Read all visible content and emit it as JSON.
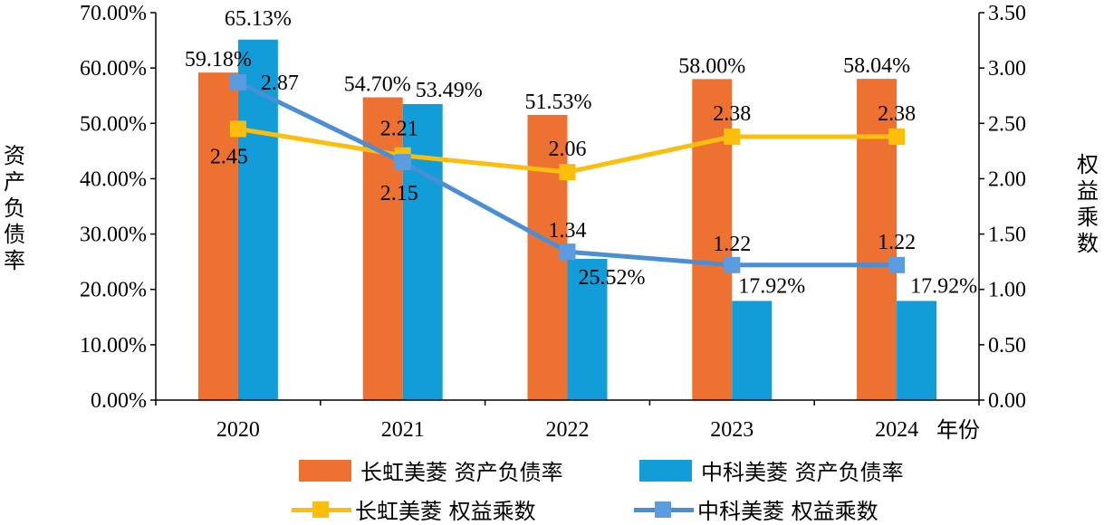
{
  "chart_data": {
    "type": "bar+line",
    "categories": [
      "2020",
      "2021",
      "2022",
      "2023",
      "2024"
    ],
    "x_axis_unit": "年份",
    "y_left": {
      "label": "资产负债率",
      "ylim": [
        0,
        70
      ],
      "step": 10,
      "tick_labels": [
        "0.00%",
        "10.00%",
        "20.00%",
        "30.00%",
        "40.00%",
        "50.00%",
        "60.00%",
        "70.00%"
      ]
    },
    "y_right": {
      "label": "权益乘数",
      "ylim": [
        0,
        3.5
      ],
      "step": 0.5,
      "tick_labels": [
        "0.00",
        "0.50",
        "1.00",
        "1.50",
        "2.00",
        "2.50",
        "3.00",
        "3.50"
      ]
    },
    "bar_series": [
      {
        "name": "长虹美菱 资产负债率",
        "color": "#ED7131",
        "values": [
          59.18,
          54.7,
          51.53,
          58.0,
          58.04
        ],
        "labels": [
          "59.18%",
          "54.70%",
          "51.53%",
          "58.00%",
          "58.04%"
        ]
      },
      {
        "name": "中科美菱 资产负债率",
        "color": "#139DD8",
        "values": [
          65.13,
          53.49,
          25.52,
          17.92,
          17.92
        ],
        "labels": [
          "65.13%",
          "53.49%",
          "25.52%",
          "17.92%",
          "17.92%"
        ]
      }
    ],
    "line_series": [
      {
        "name": "长虹美菱 权益乘数",
        "color": "#FCBE0C",
        "marker_color": "#FCBE0C",
        "values": [
          2.45,
          2.21,
          2.06,
          2.38,
          2.38
        ],
        "labels": [
          "2.45",
          "2.21",
          "2.06",
          "2.38",
          "2.38"
        ]
      },
      {
        "name": "中科美菱 权益乘数",
        "color": "#4A8FD6",
        "marker_color": "#5B9BE0",
        "values": [
          2.87,
          2.15,
          1.34,
          1.22,
          1.22
        ],
        "labels": [
          "2.87",
          "2.15",
          "1.34",
          "1.22",
          "1.22"
        ]
      }
    ],
    "grid": false,
    "legend_position": "bottom"
  }
}
